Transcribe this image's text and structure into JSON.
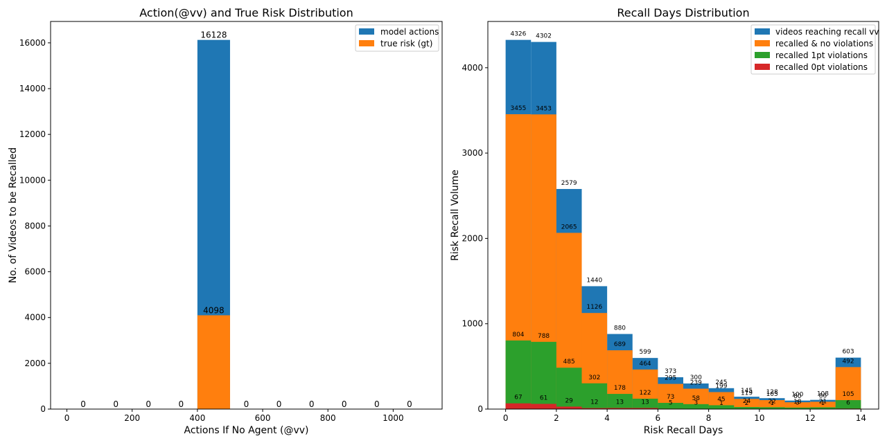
{
  "colors": {
    "blue": "#1f77b4",
    "orange": "#ff7f0e",
    "green": "#2ca02c",
    "red": "#d62728"
  },
  "chart_data": [
    {
      "type": "bar",
      "title": "Action(@vv) and True Risk Distribution",
      "xlabel": "Actions If No Agent (@vv)",
      "ylabel": "No. of Videos to be Recalled",
      "xlim": [
        -50,
        1150
      ],
      "ylim": [
        0,
        16934
      ],
      "xticks": [
        "0",
        "200",
        "400",
        "600",
        "800",
        "1000"
      ],
      "yticks": [
        "0",
        "2000",
        "4000",
        "6000",
        "8000",
        "10000",
        "12000",
        "14000",
        "16000"
      ],
      "bin_edges": [
        0,
        100,
        200,
        300,
        400,
        500,
        600,
        700,
        800,
        900,
        1000,
        1100
      ],
      "legend_position": "top-right",
      "series": [
        {
          "name": "model actions",
          "color": "blue",
          "values": [
            0,
            0,
            0,
            0,
            16128,
            0,
            0,
            0,
            0,
            0,
            0
          ],
          "labels": [
            "0",
            "0",
            "0",
            "0",
            "16128",
            "0",
            "0",
            "0",
            "0",
            "0",
            "0"
          ]
        },
        {
          "name": "true risk (gt)",
          "color": "orange",
          "values": [
            0,
            0,
            0,
            0,
            4098,
            0,
            0,
            0,
            0,
            0,
            0
          ],
          "labels": [
            "",
            "",
            "",
            "",
            "4098",
            "",
            "",
            "",
            "",
            "",
            ""
          ]
        }
      ]
    },
    {
      "type": "bar",
      "title": "Recall Days Distribution",
      "xlabel": "Risk Recall Days",
      "ylabel": "Risk Recall Volume",
      "xlim": [
        -0.7,
        14.7
      ],
      "ylim": [
        0,
        4542
      ],
      "xticks": [
        "0",
        "2",
        "4",
        "6",
        "8",
        "10",
        "12",
        "14"
      ],
      "yticks": [
        "0",
        "1000",
        "2000",
        "3000",
        "4000"
      ],
      "bin_edges": [
        0,
        1,
        2,
        3,
        4,
        5,
        6,
        7,
        8,
        9,
        10,
        11,
        12,
        13,
        14
      ],
      "legend_position": "top-right",
      "series": [
        {
          "name": "videos reaching recall vv",
          "color": "blue",
          "values": [
            4326,
            4302,
            2579,
            1440,
            880,
            599,
            373,
            300,
            245,
            145,
            128,
            100,
            108,
            603
          ],
          "labels": [
            "4326",
            "4302",
            "2579",
            "1440",
            "880",
            "599",
            "373",
            "300",
            "245",
            "145",
            "128",
            "100",
            "108",
            "603"
          ]
        },
        {
          "name": "recalled & no violations",
          "color": "orange",
          "values": [
            3455,
            3453,
            2065,
            1126,
            689,
            464,
            295,
            239,
            199,
            119,
            105,
            80,
            86,
            492
          ],
          "labels": [
            "3455",
            "3453",
            "2065",
            "1126",
            "689",
            "464",
            "295",
            "239",
            "199",
            "119",
            "105",
            "80",
            "86",
            "492"
          ]
        },
        {
          "name": "recalled 1pt violations",
          "color": "green",
          "values": [
            804,
            788,
            485,
            302,
            178,
            122,
            73,
            58,
            45,
            24,
            22,
            18,
            21,
            105
          ],
          "labels": [
            "804",
            "788",
            "485",
            "302",
            "178",
            "122",
            "73",
            "58",
            "45",
            "24",
            "22",
            "18",
            "21",
            "105"
          ]
        },
        {
          "name": "recalled 0pt violations",
          "color": "red",
          "values": [
            67,
            61,
            29,
            12,
            13,
            13,
            5,
            3,
            1,
            2,
            1,
            3,
            1,
            6
          ],
          "labels": [
            "67",
            "61",
            "29",
            "12",
            "13",
            "13",
            "5",
            "3",
            "1",
            "2",
            "1",
            "3",
            "1",
            "6"
          ]
        }
      ]
    }
  ]
}
